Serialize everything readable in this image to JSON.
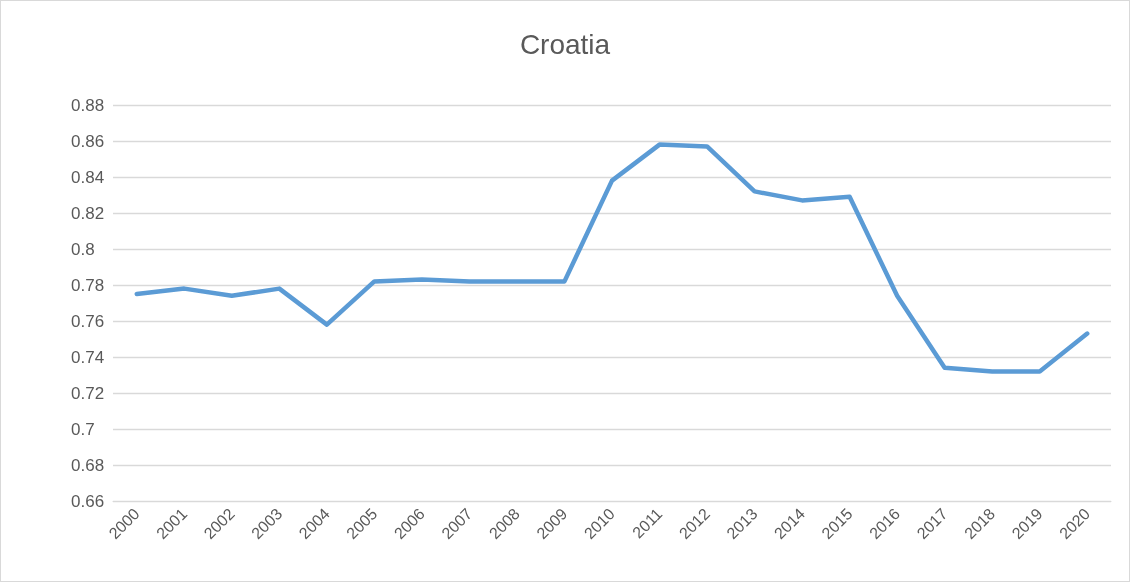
{
  "chart_data": {
    "type": "line",
    "title": "Croatia",
    "categories": [
      "2000",
      "2001",
      "2002",
      "2003",
      "2004",
      "2005",
      "2006",
      "2007",
      "2008",
      "2009",
      "2010",
      "2011",
      "2012",
      "2013",
      "2014",
      "2015",
      "2016",
      "2017",
      "2018",
      "2019",
      "2020"
    ],
    "series": [
      {
        "color": "#5b9bd5",
        "values": [
          0.775,
          0.778,
          0.774,
          0.778,
          0.758,
          0.782,
          0.783,
          0.782,
          0.782,
          0.782,
          0.838,
          0.858,
          0.857,
          0.832,
          0.827,
          0.829,
          0.774,
          0.734,
          0.732,
          0.732,
          0.753
        ]
      }
    ],
    "ylim": [
      0.66,
      0.88
    ],
    "yticks": [
      0.66,
      0.68,
      0.7,
      0.72,
      0.74,
      0.76,
      0.78,
      0.8,
      0.82,
      0.84,
      0.86,
      0.88
    ],
    "grid": "y",
    "marker": "none",
    "line_style": "solid"
  }
}
